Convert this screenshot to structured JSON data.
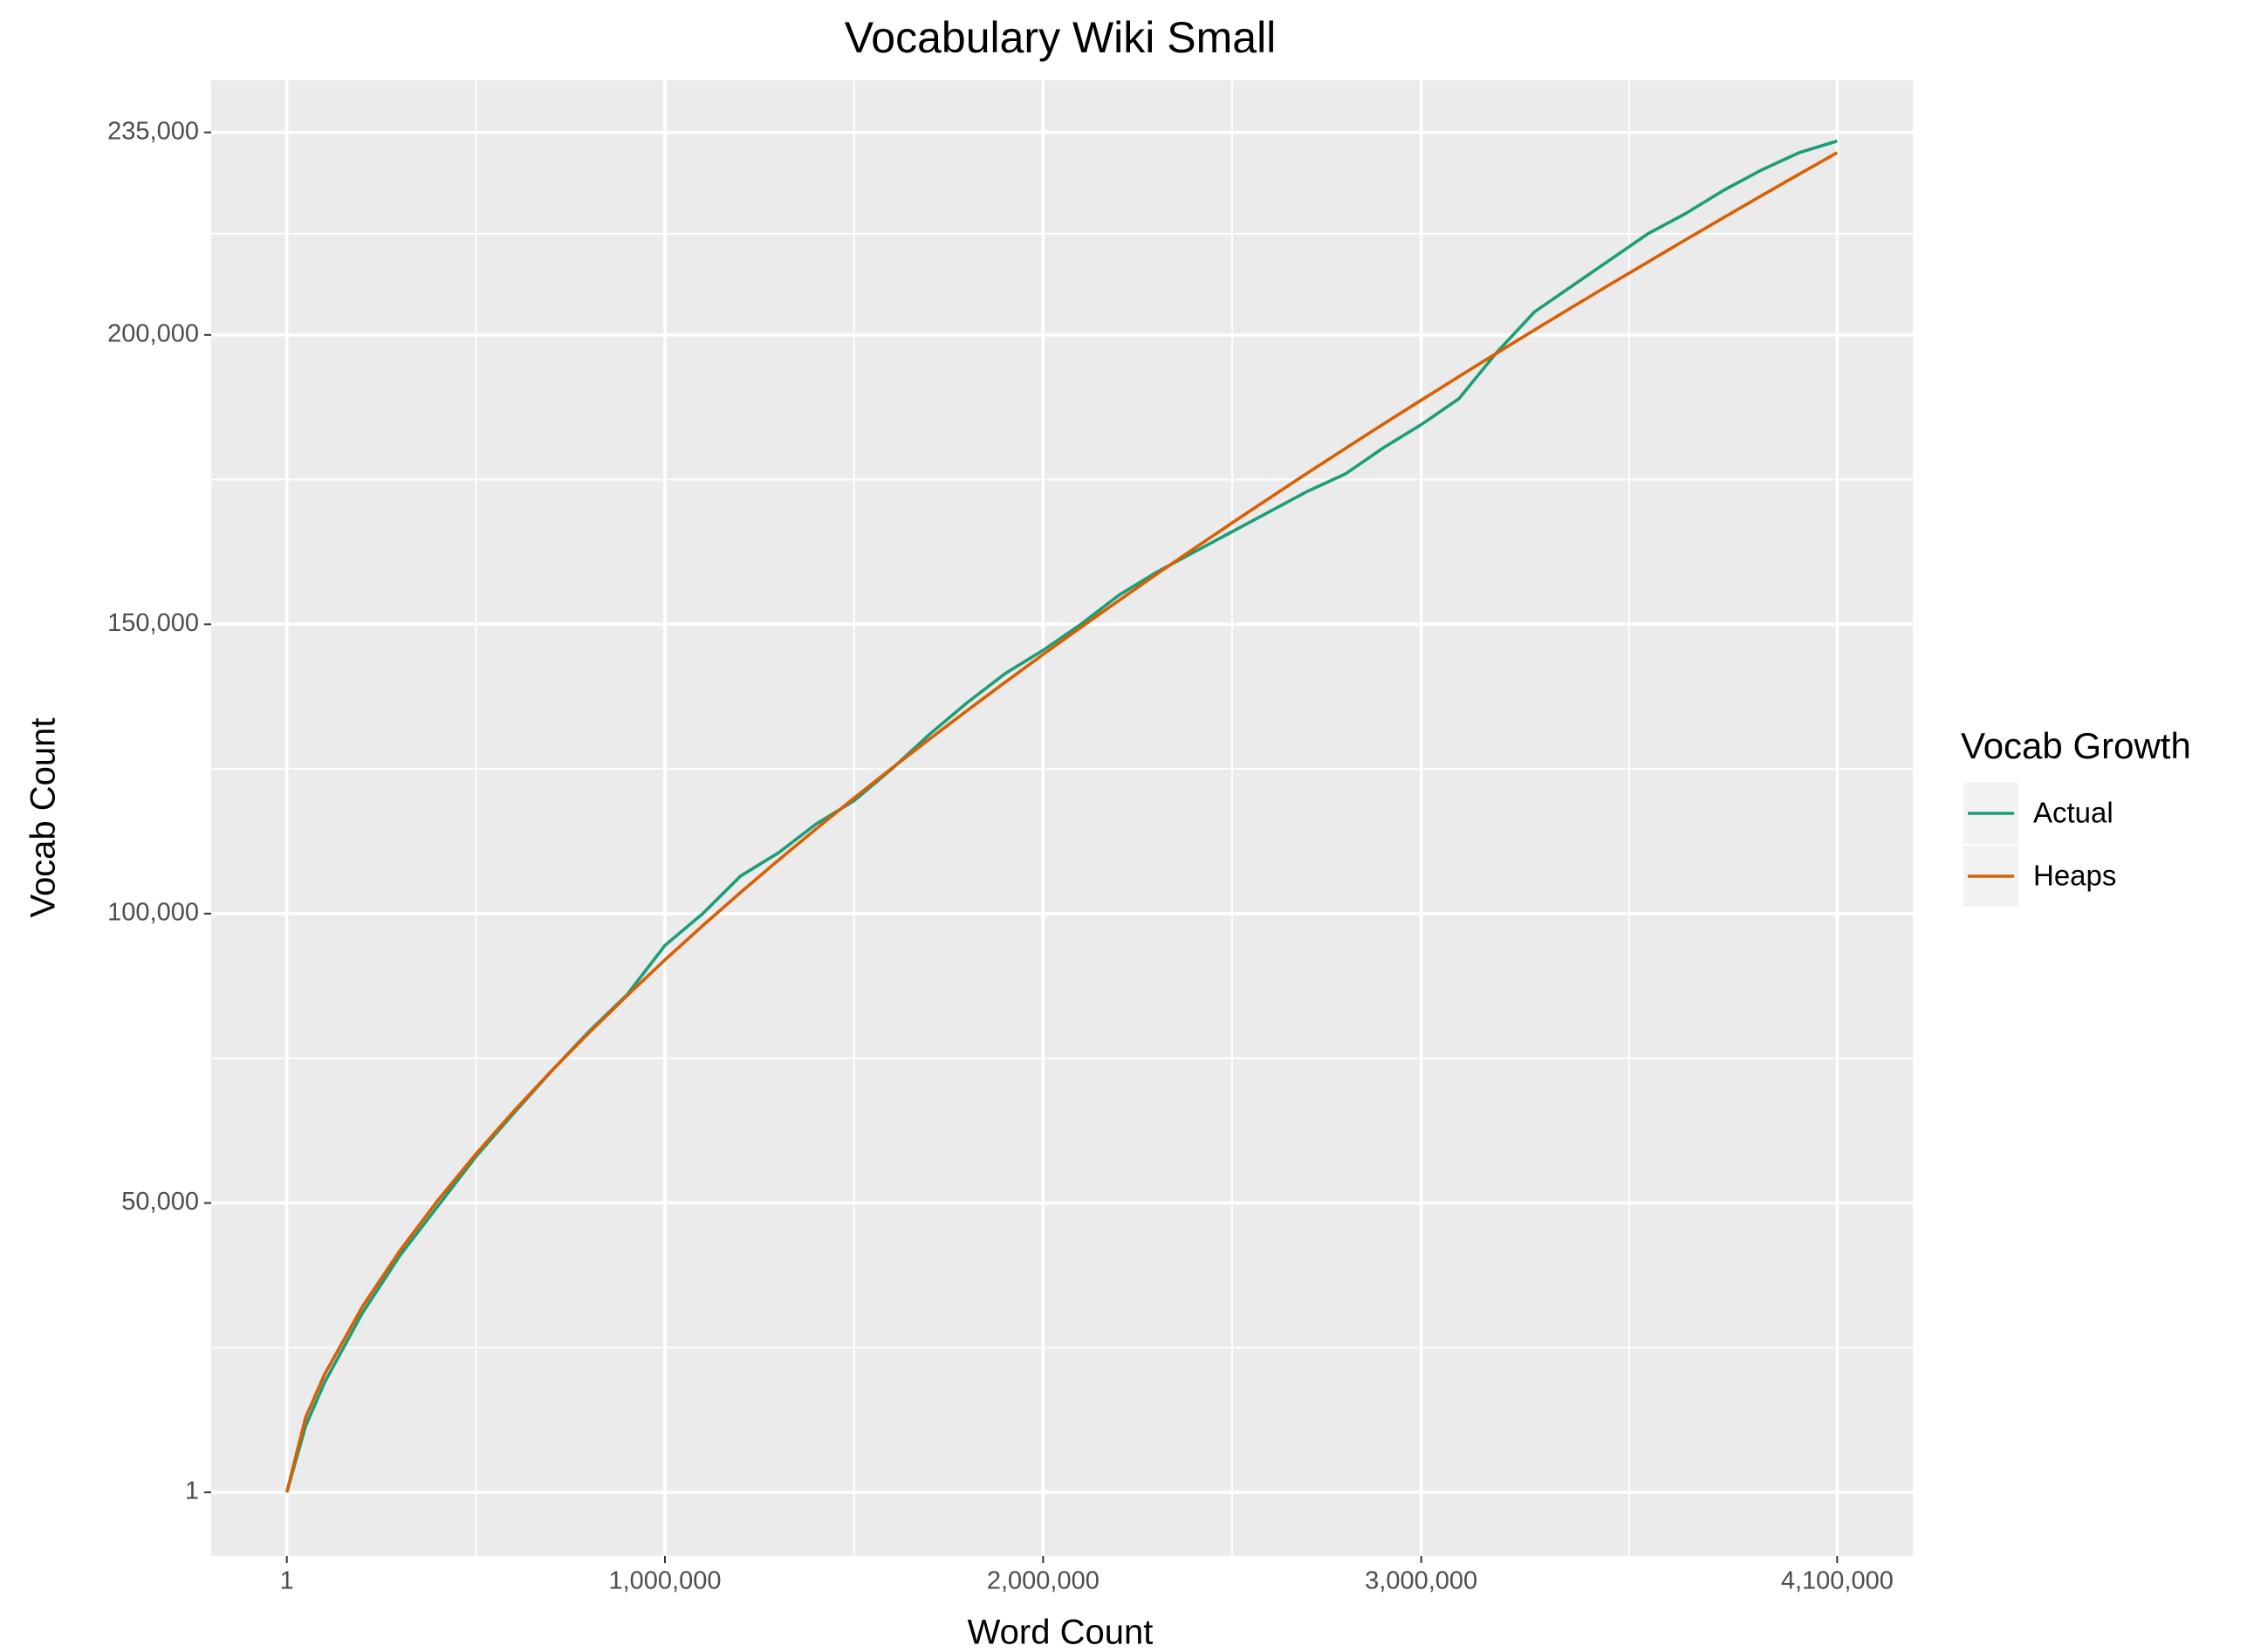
{
  "chart_data": {
    "type": "line",
    "title": "Vocabulary Wiki Small",
    "x_label": "Word Count",
    "y_label": "Vocab Count",
    "legend_title": "Vocab Growth",
    "legend_position": "right",
    "grid": true,
    "x": [
      1,
      50000,
      100000,
      200000,
      300000,
      400000,
      500000,
      600000,
      700000,
      800000,
      900000,
      1000000,
      1100000,
      1200000,
      1300000,
      1400000,
      1500000,
      1600000,
      1700000,
      1800000,
      1900000,
      2000000,
      2100000,
      2200000,
      2300000,
      2400000,
      2500000,
      2600000,
      2700000,
      2800000,
      2900000,
      3000000,
      3100000,
      3200000,
      3300000,
      3400000,
      3500000,
      3600000,
      3700000,
      3800000,
      3900000,
      4000000,
      4100000
    ],
    "series": [
      {
        "name": "Actual",
        "color": "#1b9e77",
        "values": [
          1,
          11500,
          19000,
          31000,
          41000,
          49500,
          58000,
          65500,
          72800,
          79700,
          86000,
          94500,
          100000,
          106500,
          110500,
          115500,
          119500,
          125000,
          131000,
          136500,
          141500,
          145500,
          150000,
          155000,
          159000,
          162500,
          166000,
          169500,
          173000,
          176000,
          180500,
          184500,
          189000,
          197000,
          204000,
          208500,
          213000,
          217500,
          221000,
          225000,
          228500,
          231500,
          233500
        ]
      },
      {
        "name": "Heaps",
        "color": "#d95f02",
        "values": [
          1,
          12983,
          20400,
          32090,
          41850,
          50500,
          58450,
          65840,
          72820,
          79460,
          85830,
          92010,
          97930,
          103660,
          109230,
          114660,
          119960,
          125120,
          130180,
          135140,
          139990,
          144780,
          149470,
          154090,
          158640,
          163110,
          167520,
          171860,
          176180,
          180400,
          184600,
          188720,
          192820,
          196870,
          200870,
          204830,
          208750,
          212610,
          216480,
          220270,
          224060,
          227800,
          231500
        ]
      }
    ],
    "xlim": [
      -200000,
      4300000
    ],
    "xticks": [
      1,
      {
        "value": 1000000,
        "label": "1,000,000"
      },
      {
        "value": 2000000,
        "label": "2,000,000"
      },
      {
        "value": 3000000,
        "label": "3,000,000"
      },
      {
        "value": 4100000,
        "label": "4,100,000"
      }
    ],
    "ylim": [
      -11000,
      244000
    ],
    "yticks": [
      1,
      {
        "value": 50000,
        "label": "50,000"
      },
      {
        "value": 100000,
        "label": "100,000"
      },
      {
        "value": 150000,
        "label": "150,000"
      },
      {
        "value": 200000,
        "label": "200,000"
      },
      {
        "value": 235000,
        "label": "235,000"
      }
    ]
  }
}
